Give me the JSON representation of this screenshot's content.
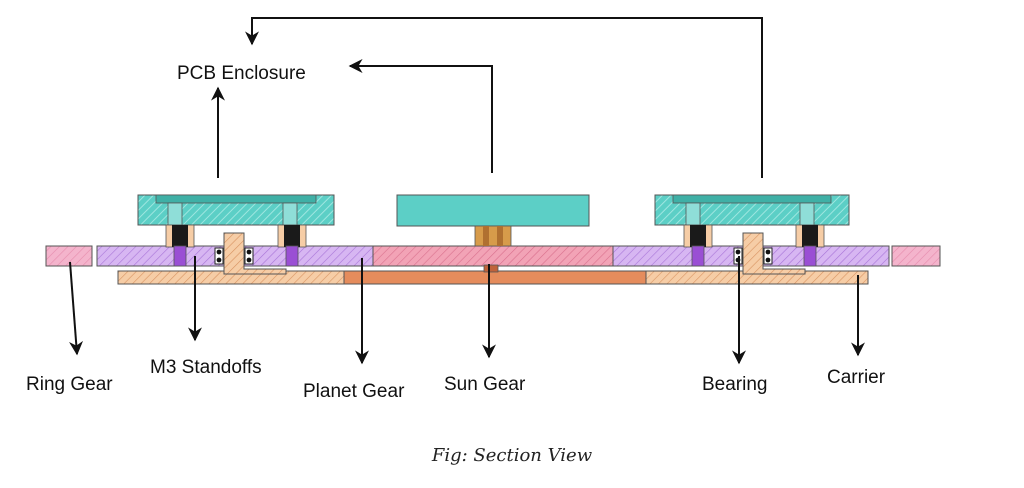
{
  "labels": {
    "pcb_enclosure": "PCB Enclosure",
    "ring_gear": "Ring Gear",
    "m3_standoffs": "M3 Standoffs",
    "planet_gear": "Planet Gear",
    "sun_gear": "Sun Gear",
    "bearing": "Bearing",
    "carrier": "Carrier"
  },
  "caption": "Fig: Section View",
  "colors": {
    "enclosure": "#5ccfc6",
    "enclosure_hatch": "#8fded8",
    "pink": "#f4b4cc",
    "purple": "#d2aef0",
    "purple_dark": "#9a4fd4",
    "orange": "#f5c9a0",
    "orange_dark": "#e08a55",
    "carrier_mid": "#e58c5c",
    "sun_hub": "#c98a3a",
    "standoff_black": "#1a1a1a",
    "line": "#111111"
  }
}
